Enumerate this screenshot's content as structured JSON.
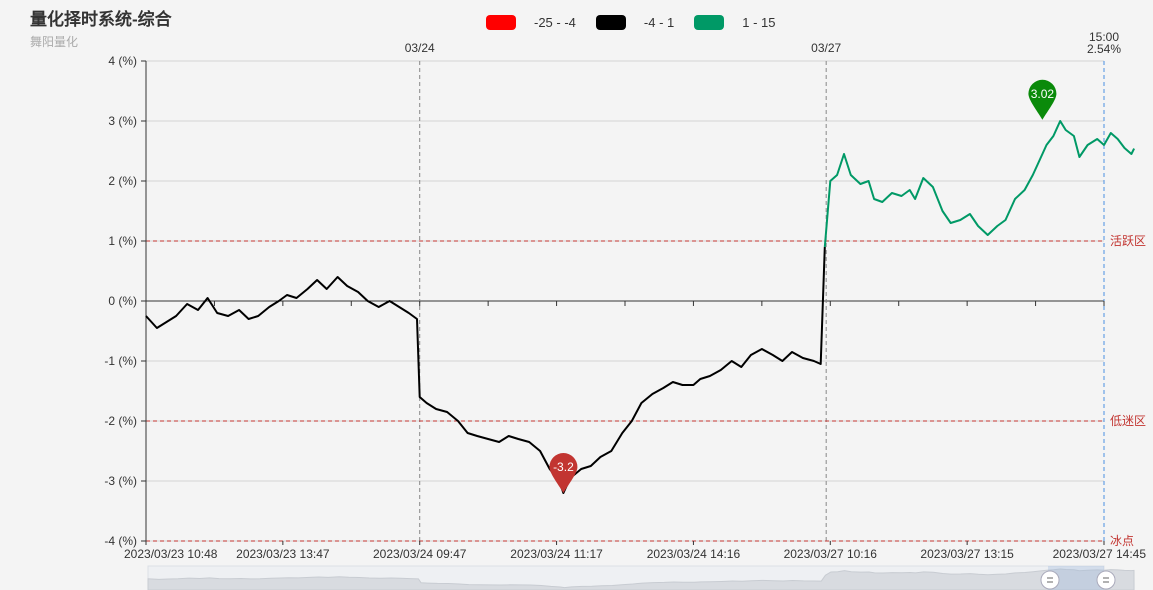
{
  "header": {
    "title": "量化择时系统-综合",
    "subtitle": "舞阳量化"
  },
  "legend": [
    {
      "label": "-25 - -4",
      "color": "#ff0000"
    },
    {
      "label": "-4 - 1",
      "color": "#000000"
    },
    {
      "label": "1 - 15",
      "color": "#009966"
    }
  ],
  "chart_data": {
    "type": "line",
    "title": "量化择时系统-综合",
    "subtitle": "舞阳量化",
    "ylim": [
      -4,
      4
    ],
    "yticks": [
      {
        "value": 4,
        "label": "4 (%)"
      },
      {
        "value": 3,
        "label": "3 (%)"
      },
      {
        "value": 2,
        "label": "2 (%)"
      },
      {
        "value": 1,
        "label": "1 (%)"
      },
      {
        "value": 0,
        "label": "0 (%)"
      },
      {
        "value": -1,
        "label": "-1 (%)"
      },
      {
        "value": -2,
        "label": "-2 (%)"
      },
      {
        "value": -3,
        "label": "-3 (%)"
      },
      {
        "value": -4,
        "label": "-4 (%)"
      }
    ],
    "xticks": [
      "2023/03/23 10:48",
      "2023/03/23 13:47",
      "2023/03/24 09:47",
      "2023/03/24 11:17",
      "2023/03/24 14:16",
      "2023/03/27 10:16",
      "2023/03/27 13:15",
      "2023/03/27 14:45"
    ],
    "day_markers": [
      {
        "label": "03/24",
        "index": 2
      },
      {
        "label": "03/27",
        "index": 4.97
      }
    ],
    "mark_lines": [
      {
        "value": 1,
        "label": "活跃区"
      },
      {
        "value": -2,
        "label": "低迷区"
      },
      {
        "value": -4,
        "label": "冰点"
      }
    ],
    "mark_points": [
      {
        "label": "3.02",
        "value": 3.02,
        "index": 6.55,
        "color": "#0a8a0a"
      },
      {
        "label": "-3.2",
        "value": -3.2,
        "index": 3.05,
        "color": "#c23531"
      }
    ],
    "current": {
      "time": "15:00",
      "value": "2.54%"
    },
    "series": [
      {
        "name": "-4 - 1",
        "color": "#000000",
        "points": [
          [
            0.0,
            -0.25
          ],
          [
            0.08,
            -0.45
          ],
          [
            0.15,
            -0.35
          ],
          [
            0.22,
            -0.25
          ],
          [
            0.3,
            -0.05
          ],
          [
            0.38,
            -0.15
          ],
          [
            0.45,
            0.05
          ],
          [
            0.52,
            -0.2
          ],
          [
            0.6,
            -0.25
          ],
          [
            0.68,
            -0.15
          ],
          [
            0.75,
            -0.3
          ],
          [
            0.82,
            -0.25
          ],
          [
            0.9,
            -0.1
          ],
          [
            0.97,
            0.0
          ],
          [
            1.03,
            0.1
          ],
          [
            1.1,
            0.05
          ],
          [
            1.18,
            0.2
          ],
          [
            1.25,
            0.35
          ],
          [
            1.32,
            0.2
          ],
          [
            1.4,
            0.4
          ],
          [
            1.47,
            0.25
          ],
          [
            1.55,
            0.15
          ],
          [
            1.62,
            0.0
          ],
          [
            1.7,
            -0.1
          ],
          [
            1.78,
            0.0
          ],
          [
            1.85,
            -0.1
          ],
          [
            1.92,
            -0.2
          ],
          [
            1.98,
            -0.3
          ],
          [
            2.0,
            -1.6
          ],
          [
            2.05,
            -1.7
          ],
          [
            2.12,
            -1.8
          ],
          [
            2.2,
            -1.85
          ],
          [
            2.28,
            -2.0
          ],
          [
            2.35,
            -2.2
          ],
          [
            2.42,
            -2.25
          ],
          [
            2.5,
            -2.3
          ],
          [
            2.58,
            -2.35
          ],
          [
            2.65,
            -2.25
          ],
          [
            2.72,
            -2.3
          ],
          [
            2.8,
            -2.35
          ],
          [
            2.88,
            -2.5
          ],
          [
            2.95,
            -2.8
          ],
          [
            3.02,
            -3.0
          ],
          [
            3.05,
            -3.2
          ],
          [
            3.1,
            -2.95
          ],
          [
            3.18,
            -2.8
          ],
          [
            3.25,
            -2.75
          ],
          [
            3.32,
            -2.6
          ],
          [
            3.4,
            -2.5
          ],
          [
            3.48,
            -2.2
          ],
          [
            3.55,
            -2.0
          ],
          [
            3.62,
            -1.7
          ],
          [
            3.7,
            -1.55
          ],
          [
            3.78,
            -1.45
          ],
          [
            3.85,
            -1.35
          ],
          [
            3.92,
            -1.4
          ],
          [
            4.0,
            -1.4
          ],
          [
            4.05,
            -1.3
          ],
          [
            4.12,
            -1.25
          ],
          [
            4.2,
            -1.15
          ],
          [
            4.28,
            -1.0
          ],
          [
            4.35,
            -1.1
          ],
          [
            4.42,
            -0.9
          ],
          [
            4.5,
            -0.8
          ],
          [
            4.58,
            -0.9
          ],
          [
            4.65,
            -1.0
          ],
          [
            4.72,
            -0.85
          ],
          [
            4.8,
            -0.95
          ],
          [
            4.88,
            -1.0
          ],
          [
            4.93,
            -1.05
          ],
          [
            4.96,
            0.9
          ]
        ]
      },
      {
        "name": "1 - 15",
        "color": "#009966",
        "points": [
          [
            4.96,
            0.9
          ],
          [
            5.0,
            2.0
          ],
          [
            5.05,
            2.1
          ],
          [
            5.1,
            2.45
          ],
          [
            5.15,
            2.1
          ],
          [
            5.22,
            1.95
          ],
          [
            5.28,
            2.0
          ],
          [
            5.32,
            1.7
          ],
          [
            5.38,
            1.65
          ],
          [
            5.45,
            1.8
          ],
          [
            5.52,
            1.75
          ],
          [
            5.58,
            1.85
          ],
          [
            5.62,
            1.7
          ],
          [
            5.68,
            2.05
          ],
          [
            5.75,
            1.9
          ],
          [
            5.82,
            1.5
          ],
          [
            5.88,
            1.3
          ],
          [
            5.95,
            1.35
          ],
          [
            6.02,
            1.45
          ],
          [
            6.08,
            1.25
          ],
          [
            6.15,
            1.1
          ],
          [
            6.22,
            1.25
          ],
          [
            6.28,
            1.35
          ],
          [
            6.35,
            1.7
          ],
          [
            6.42,
            1.85
          ],
          [
            6.48,
            2.1
          ],
          [
            6.52,
            2.3
          ],
          [
            6.58,
            2.6
          ],
          [
            6.63,
            2.75
          ],
          [
            6.68,
            3.0
          ],
          [
            6.72,
            2.85
          ],
          [
            6.78,
            2.75
          ],
          [
            6.82,
            2.4
          ],
          [
            6.88,
            2.6
          ],
          [
            6.95,
            2.7
          ],
          [
            7.0,
            2.6
          ],
          [
            7.05,
            2.8
          ],
          [
            7.1,
            2.7
          ],
          [
            7.15,
            2.55
          ],
          [
            7.2,
            2.45
          ],
          [
            7.22,
            2.54
          ]
        ]
      }
    ]
  }
}
